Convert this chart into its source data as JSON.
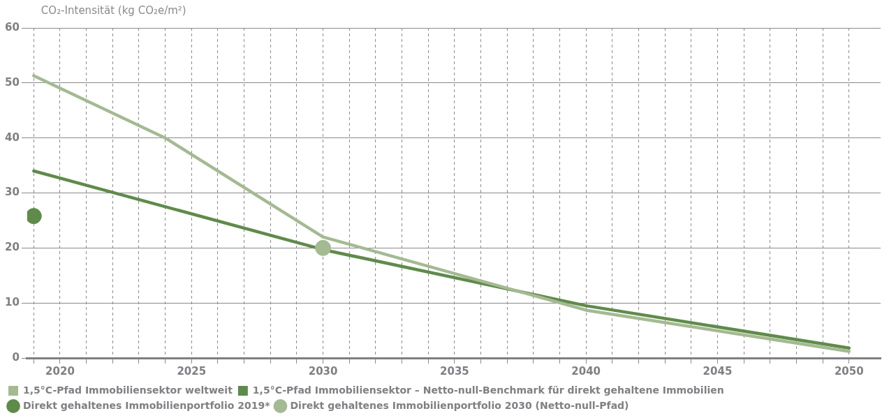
{
  "chart_data": {
    "type": "line",
    "ylabel": "CO₂-Intensität (kg CO₂e/m²)",
    "xlim": [
      2018.75,
      2051.2
    ],
    "xticks": [
      {
        "value": 2019,
        "label": null
      },
      {
        "value": 2020,
        "label": "2020"
      },
      {
        "value": 2021,
        "label": null
      },
      {
        "value": 2022,
        "label": null
      },
      {
        "value": 2023,
        "label": null
      },
      {
        "value": 2024,
        "label": null
      },
      {
        "value": 2025,
        "label": "2025"
      },
      {
        "value": 2026,
        "label": null
      },
      {
        "value": 2027,
        "label": null
      },
      {
        "value": 2028,
        "label": null
      },
      {
        "value": 2029,
        "label": null
      },
      {
        "value": 2030,
        "label": "2030"
      },
      {
        "value": 2031,
        "label": null
      },
      {
        "value": 2032,
        "label": null
      },
      {
        "value": 2033,
        "label": null
      },
      {
        "value": 2034,
        "label": null
      },
      {
        "value": 2035,
        "label": "2035"
      },
      {
        "value": 2036,
        "label": null
      },
      {
        "value": 2037,
        "label": null
      },
      {
        "value": 2038,
        "label": null
      },
      {
        "value": 2039,
        "label": null
      },
      {
        "value": 2040,
        "label": "2040"
      },
      {
        "value": 2041,
        "label": null
      },
      {
        "value": 2042,
        "label": null
      },
      {
        "value": 2043,
        "label": null
      },
      {
        "value": 2044,
        "label": null
      },
      {
        "value": 2045,
        "label": "2045"
      },
      {
        "value": 2046,
        "label": null
      },
      {
        "value": 2047,
        "label": null
      },
      {
        "value": 2048,
        "label": null
      },
      {
        "value": 2049,
        "label": null
      },
      {
        "value": 2050,
        "label": "2050"
      }
    ],
    "ylim": [
      0,
      60
    ],
    "yticks": [
      0,
      10,
      20,
      30,
      40,
      50,
      60
    ],
    "grid": true,
    "legend": "bottom",
    "marker": "none",
    "line_style": "solid",
    "series": [
      {
        "name": "1,5°C-Pfad Immobiliensektor weltweit",
        "color": "#a4ba92",
        "x": [
          2019,
          2024,
          2030,
          2040,
          2050
        ],
        "values": [
          51.3,
          40,
          22,
          8.7,
          1.2
        ]
      },
      {
        "name": "1,5°C-Pfad Immobiliensektor – Netto-null-Benchmark für direkt gehaltene Immobilien",
        "color": "#5f8b4a",
        "x": [
          2019,
          2030,
          2040,
          2050
        ],
        "values": [
          34,
          19.7,
          9.5,
          1.8
        ]
      },
      {
        "name": "Direkt gehaltenes Immobilienportfolio 2019*",
        "type": "scatter",
        "marker": "circle",
        "color": "#5f8b4a",
        "x": [
          2019
        ],
        "values": [
          25.8
        ]
      },
      {
        "name": "Direkt gehaltenes Immobilienportfolio 2030 (Netto-null-Pfad)",
        "type": "scatter",
        "marker": "circle",
        "color": "#a4ba92",
        "x": [
          2030
        ],
        "values": [
          20
        ]
      }
    ]
  }
}
